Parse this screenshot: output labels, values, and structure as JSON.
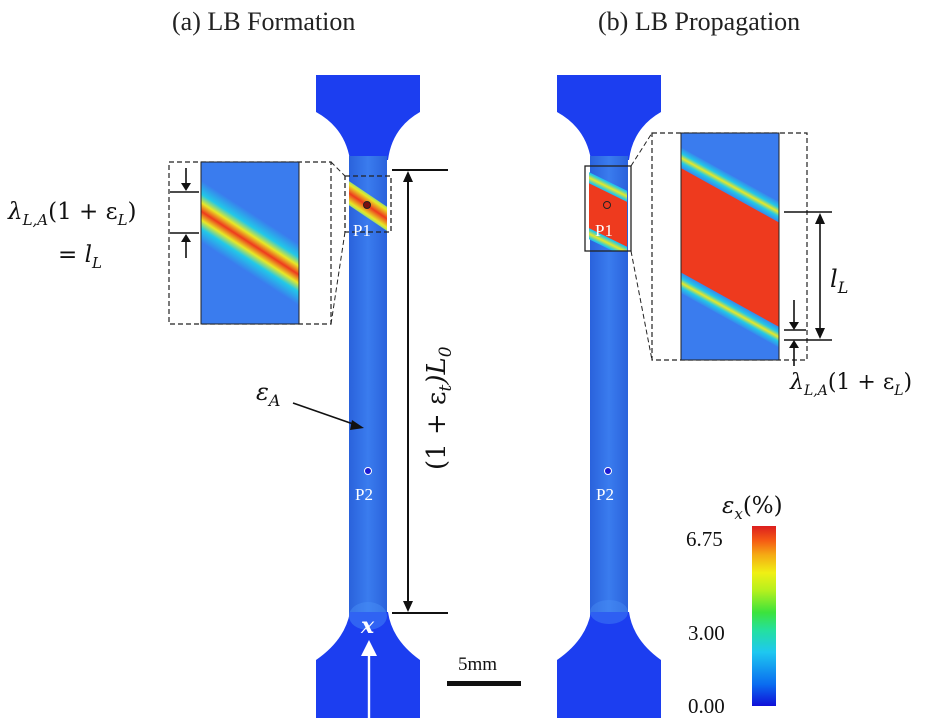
{
  "panels": {
    "a": {
      "title": "(a)  LB Formation"
    },
    "b": {
      "title": "(b)  LB Propagation"
    }
  },
  "labels": {
    "a_band_width_line1": "λ",
    "a_band_width_sub": "L,A",
    "a_band_width_rest": "(1 + ε",
    "a_band_width_sub2": "L",
    "a_band_width_close": ")",
    "a_eq": "= l",
    "a_eq_sub": "L",
    "a_gauge_pre": "(1 + ε",
    "a_gauge_sub": "t",
    "a_gauge_mid": ")L",
    "a_gauge_sub2": "0",
    "a_strain": "ε",
    "a_strain_sub": "A",
    "b_band_len": "l",
    "b_band_len_sub": "L",
    "b_band_width_line1": "λ",
    "b_band_width_sub": "L,A",
    "b_band_width_rest": "(1 + ε",
    "b_band_width_sub2": "L",
    "b_band_width_close": ")",
    "x_axis": "x",
    "point1": "P1",
    "point2": "P2",
    "scale_bar": "5mm"
  },
  "colorbar": {
    "title": "ε",
    "title_sub": "x",
    "title_unit": "(%)",
    "ticks": [
      "6.75",
      "3.00",
      "0.00"
    ],
    "stops": [
      "#1010d8",
      "#0a6cf0",
      "#1ec8f0",
      "#24e0a0",
      "#3ce33c",
      "#b4f01e",
      "#f0f014",
      "#f5aa14",
      "#f55a14",
      "#dc1e1e"
    ]
  },
  "colors": {
    "specimen_blue": "#2f6fe6",
    "specimen_grip": "#1c3ef0",
    "band_red": "#ee3a1e",
    "band_yellow": "#e6e626",
    "band_green": "#3cdc50"
  }
}
